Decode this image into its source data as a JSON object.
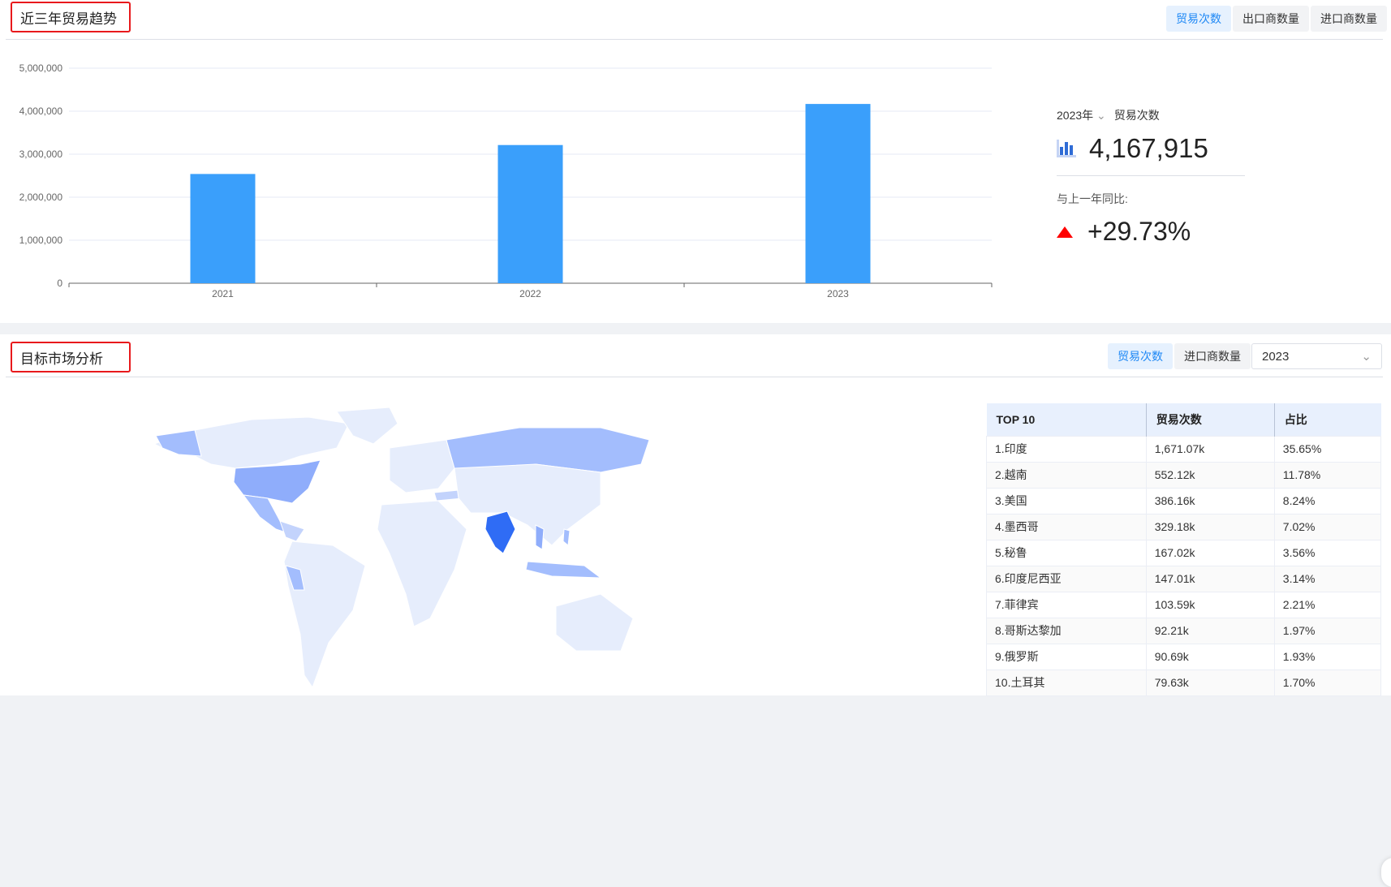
{
  "trend": {
    "title": "近三年贸易趋势",
    "tabs": [
      {
        "label": "贸易次数",
        "active": true
      },
      {
        "label": "出口商数量",
        "active": false
      },
      {
        "label": "进口商数量",
        "active": false
      }
    ],
    "kpi": {
      "year": "2023年",
      "metric": "贸易次数",
      "value": "4,167,915",
      "compare_label": "与上一年同比:",
      "change": "+29.73%",
      "direction": "up",
      "icon": "bar-chart-icon"
    }
  },
  "chart_data": {
    "type": "bar",
    "categories": [
      "2021",
      "2022",
      "2023"
    ],
    "values": [
      2540000,
      3213000,
      4167915
    ],
    "yticks": [
      "0",
      "1,000,000",
      "2,000,000",
      "3,000,000",
      "4,000,000",
      "5,000,000"
    ],
    "ylim": [
      0,
      5000000
    ],
    "grid": true,
    "color": "#3a9ffb"
  },
  "market": {
    "title": "目标市场分析",
    "tabs": [
      {
        "label": "贸易次数",
        "active": true
      },
      {
        "label": "进口商数量",
        "active": false
      }
    ],
    "year_select": "2023",
    "table": {
      "headers": [
        "TOP 10",
        "贸易次数",
        "占比"
      ],
      "rows": [
        [
          "1.印度",
          "1,671.07k",
          "35.65%"
        ],
        [
          "2.越南",
          "552.12k",
          "11.78%"
        ],
        [
          "3.美国",
          "386.16k",
          "8.24%"
        ],
        [
          "4.墨西哥",
          "329.18k",
          "7.02%"
        ],
        [
          "5.秘鲁",
          "167.02k",
          "3.56%"
        ],
        [
          "6.印度尼西亚",
          "147.01k",
          "3.14%"
        ],
        [
          "7.菲律宾",
          "103.59k",
          "2.21%"
        ],
        [
          "8.哥斯达黎加",
          "92.21k",
          "1.97%"
        ],
        [
          "9.俄罗斯",
          "90.69k",
          "1.93%"
        ],
        [
          "10.土耳其",
          "79.63k",
          "1.70%"
        ]
      ]
    },
    "map_colors": {
      "high": "#2f6cf5",
      "mid": "#a3bdfd",
      "low": "#e6edfc"
    }
  }
}
